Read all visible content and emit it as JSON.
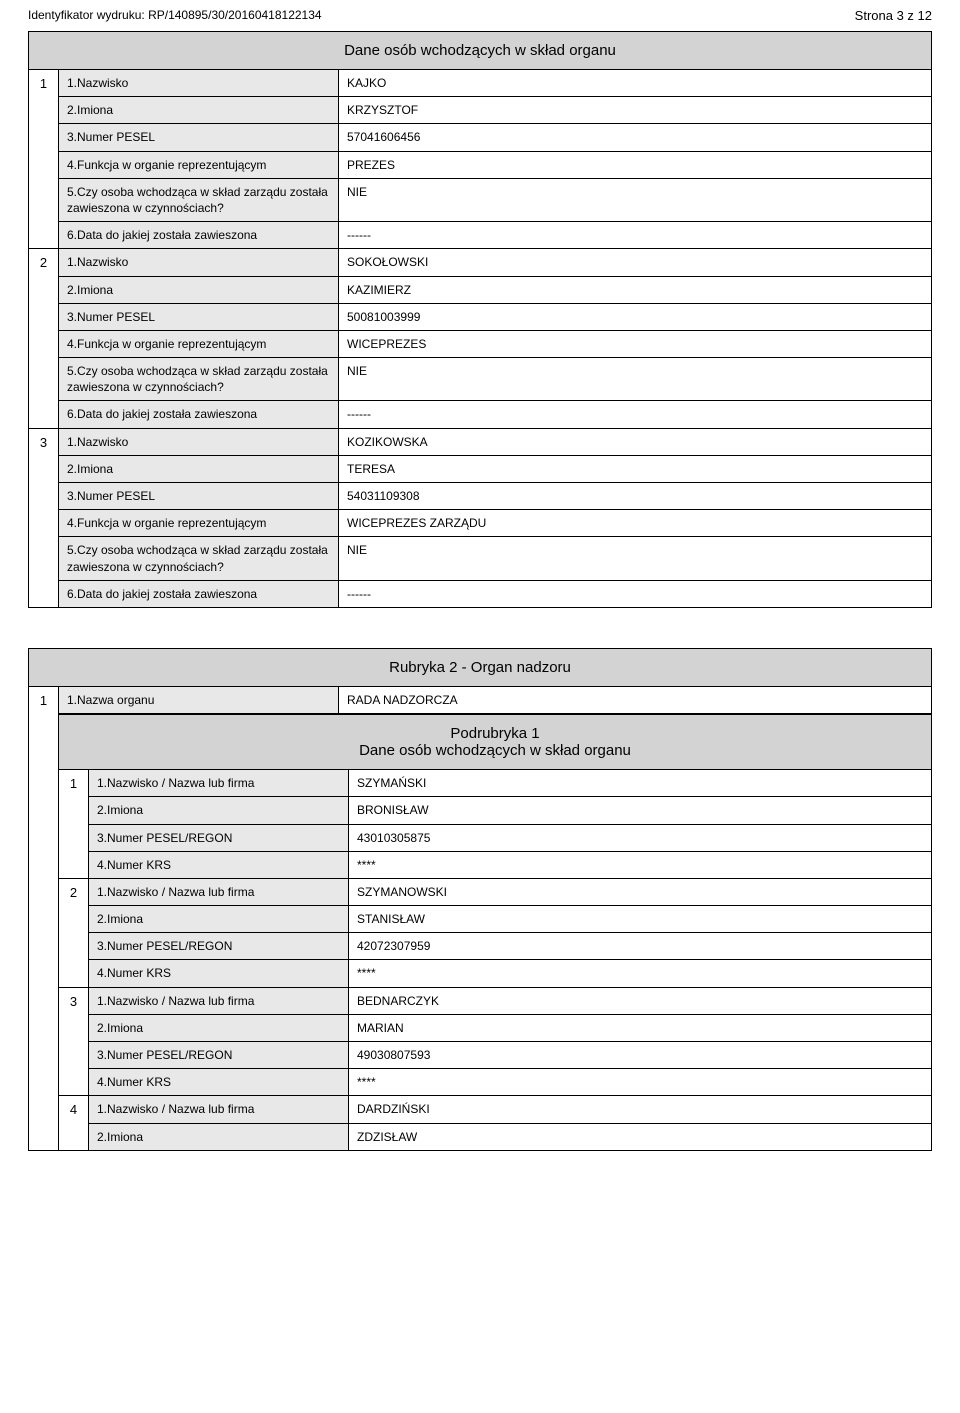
{
  "header": {
    "id_prefix": "Identyfikator wydruku:",
    "id_value": "RP/140895/30/20160418122134",
    "page_label": "Strona 3 z 12"
  },
  "section1": {
    "title": "Dane osób wchodzących w skład organu",
    "people": [
      {
        "idx": "1",
        "fields": [
          {
            "label": "1.Nazwisko",
            "value": "KAJKO"
          },
          {
            "label": "2.Imiona",
            "value": "KRZYSZTOF"
          },
          {
            "label": "3.Numer PESEL",
            "value": "57041606456"
          },
          {
            "label": "4.Funkcja w organie reprezentującym",
            "value": "PREZES"
          },
          {
            "label": "5.Czy osoba wchodząca w skład zarządu została zawieszona w czynnościach?",
            "value": "NIE"
          },
          {
            "label": "6.Data do jakiej została zawieszona",
            "value": "------"
          }
        ]
      },
      {
        "idx": "2",
        "fields": [
          {
            "label": "1.Nazwisko",
            "value": "SOKOŁOWSKI"
          },
          {
            "label": "2.Imiona",
            "value": "KAZIMIERZ"
          },
          {
            "label": "3.Numer PESEL",
            "value": "50081003999"
          },
          {
            "label": "4.Funkcja w organie reprezentującym",
            "value": "WICEPREZES"
          },
          {
            "label": "5.Czy osoba wchodząca w skład zarządu została zawieszona w czynnościach?",
            "value": "NIE"
          },
          {
            "label": "6.Data do jakiej została zawieszona",
            "value": "------"
          }
        ]
      },
      {
        "idx": "3",
        "fields": [
          {
            "label": "1.Nazwisko",
            "value": "KOZIKOWSKA"
          },
          {
            "label": "2.Imiona",
            "value": "TERESA"
          },
          {
            "label": "3.Numer PESEL",
            "value": "54031109308"
          },
          {
            "label": "4.Funkcja w organie reprezentującym",
            "value": "WICEPREZES ZARZĄDU"
          },
          {
            "label": "5.Czy osoba wchodząca w skład zarządu została zawieszona w czynnościach?",
            "value": "NIE"
          },
          {
            "label": "6.Data do jakiej została zawieszona",
            "value": "------"
          }
        ]
      }
    ]
  },
  "section2": {
    "title": "Rubryka 2 - Organ nadzoru",
    "header_field": {
      "label": "1.Nazwa organu",
      "value": "RADA NADZORCZA"
    },
    "sub_title_line1": "Podrubryka 1",
    "sub_title_line2": "Dane osób wchodzących w skład organu",
    "outer_idx": "1",
    "people": [
      {
        "idx": "1",
        "fields": [
          {
            "label": "1.Nazwisko / Nazwa lub firma",
            "value": "SZYMAŃSKI"
          },
          {
            "label": "2.Imiona",
            "value": "BRONISŁAW"
          },
          {
            "label": "3.Numer PESEL/REGON",
            "value": "43010305875"
          },
          {
            "label": "4.Numer KRS",
            "value": "****"
          }
        ]
      },
      {
        "idx": "2",
        "fields": [
          {
            "label": "1.Nazwisko / Nazwa lub firma",
            "value": "SZYMANOWSKI"
          },
          {
            "label": "2.Imiona",
            "value": "STANISŁAW"
          },
          {
            "label": "3.Numer PESEL/REGON",
            "value": "42072307959"
          },
          {
            "label": "4.Numer KRS",
            "value": "****"
          }
        ]
      },
      {
        "idx": "3",
        "fields": [
          {
            "label": "1.Nazwisko / Nazwa lub firma",
            "value": "BEDNARCZYK"
          },
          {
            "label": "2.Imiona",
            "value": "MARIAN"
          },
          {
            "label": "3.Numer PESEL/REGON",
            "value": "49030807593"
          },
          {
            "label": "4.Numer KRS",
            "value": "****"
          }
        ]
      },
      {
        "idx": "4",
        "fields": [
          {
            "label": "1.Nazwisko / Nazwa lub firma",
            "value": "DARDZIŃSKI"
          },
          {
            "label": "2.Imiona",
            "value": "ZDZISŁAW"
          }
        ]
      }
    ]
  }
}
